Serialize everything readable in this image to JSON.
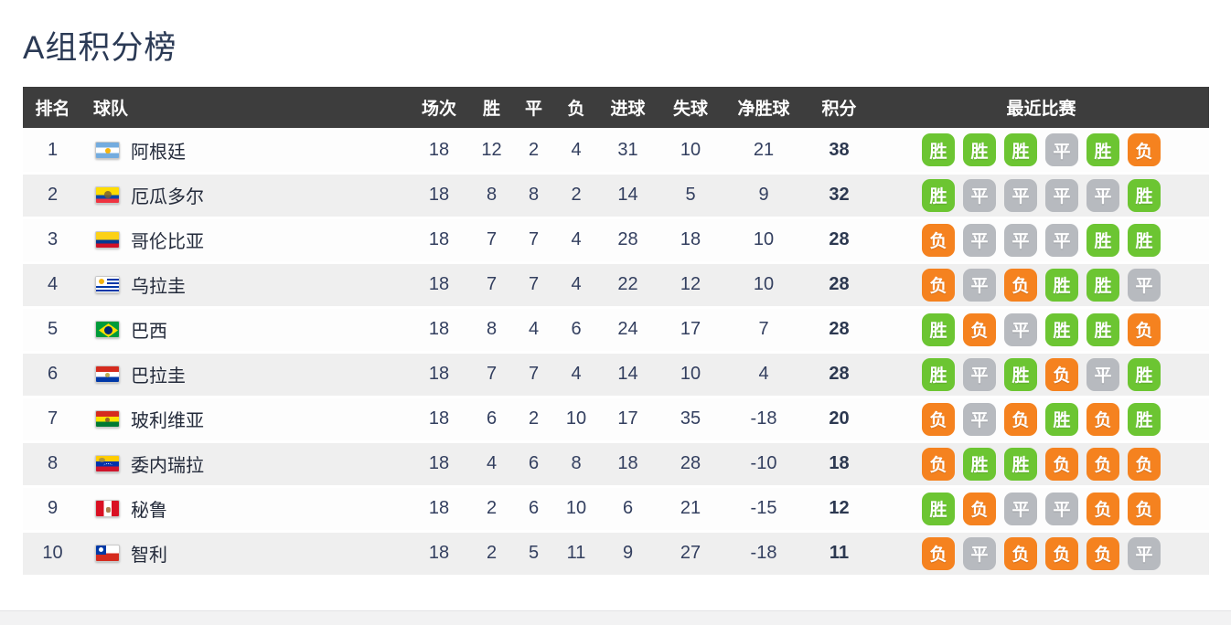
{
  "page": {
    "title": "A组积分榜"
  },
  "table": {
    "columns": {
      "rank": "排名",
      "team": "球队",
      "played": "场次",
      "win": "胜",
      "draw": "平",
      "loss": "负",
      "goals_for": "进球",
      "goals_against": "失球",
      "goal_diff": "净胜球",
      "points": "积分",
      "recent": "最近比赛"
    },
    "result_labels": {
      "win": "胜",
      "draw": "平",
      "loss": "负"
    },
    "colors": {
      "header_bg": "#3d3d3d",
      "row_alt_bg": "#efefef",
      "title_text": "#2b3a55",
      "cell_text": "#333f5f",
      "win_badge": "#6cc532",
      "draw_badge": "#b7babf",
      "loss_badge": "#f5821f"
    },
    "rows": [
      {
        "rank": "1",
        "team": "阿根廷",
        "flag": "argentina",
        "played": "18",
        "win": "12",
        "draw": "2",
        "loss": "4",
        "goals_for": "31",
        "goals_against": "10",
        "goal_diff": "21",
        "points": "38",
        "recent": [
          "win",
          "win",
          "win",
          "draw",
          "win",
          "loss"
        ]
      },
      {
        "rank": "2",
        "team": "厄瓜多尔",
        "flag": "ecuador",
        "played": "18",
        "win": "8",
        "draw": "8",
        "loss": "2",
        "goals_for": "14",
        "goals_against": "5",
        "goal_diff": "9",
        "points": "32",
        "recent": [
          "win",
          "draw",
          "draw",
          "draw",
          "draw",
          "win"
        ]
      },
      {
        "rank": "3",
        "team": "哥伦比亚",
        "flag": "colombia",
        "played": "18",
        "win": "7",
        "draw": "7",
        "loss": "4",
        "goals_for": "28",
        "goals_against": "18",
        "goal_diff": "10",
        "points": "28",
        "recent": [
          "loss",
          "draw",
          "draw",
          "draw",
          "win",
          "win"
        ]
      },
      {
        "rank": "4",
        "team": "乌拉圭",
        "flag": "uruguay",
        "played": "18",
        "win": "7",
        "draw": "7",
        "loss": "4",
        "goals_for": "22",
        "goals_against": "12",
        "goal_diff": "10",
        "points": "28",
        "recent": [
          "loss",
          "draw",
          "loss",
          "win",
          "win",
          "draw"
        ]
      },
      {
        "rank": "5",
        "team": "巴西",
        "flag": "brazil",
        "played": "18",
        "win": "8",
        "draw": "4",
        "loss": "6",
        "goals_for": "24",
        "goals_against": "17",
        "goal_diff": "7",
        "points": "28",
        "recent": [
          "win",
          "loss",
          "draw",
          "win",
          "win",
          "loss"
        ]
      },
      {
        "rank": "6",
        "team": "巴拉圭",
        "flag": "paraguay",
        "played": "18",
        "win": "7",
        "draw": "7",
        "loss": "4",
        "goals_for": "14",
        "goals_against": "10",
        "goal_diff": "4",
        "points": "28",
        "recent": [
          "win",
          "draw",
          "win",
          "loss",
          "draw",
          "win"
        ]
      },
      {
        "rank": "7",
        "team": "玻利维亚",
        "flag": "bolivia",
        "played": "18",
        "win": "6",
        "draw": "2",
        "loss": "10",
        "goals_for": "17",
        "goals_against": "35",
        "goal_diff": "-18",
        "points": "20",
        "recent": [
          "loss",
          "draw",
          "loss",
          "win",
          "loss",
          "win"
        ]
      },
      {
        "rank": "8",
        "team": "委内瑞拉",
        "flag": "venezuela",
        "played": "18",
        "win": "4",
        "draw": "6",
        "loss": "8",
        "goals_for": "18",
        "goals_against": "28",
        "goal_diff": "-10",
        "points": "18",
        "recent": [
          "loss",
          "win",
          "win",
          "loss",
          "loss",
          "loss"
        ]
      },
      {
        "rank": "9",
        "team": "秘鲁",
        "flag": "peru",
        "played": "18",
        "win": "2",
        "draw": "6",
        "loss": "10",
        "goals_for": "6",
        "goals_against": "21",
        "goal_diff": "-15",
        "points": "12",
        "recent": [
          "win",
          "loss",
          "draw",
          "draw",
          "loss",
          "loss"
        ]
      },
      {
        "rank": "10",
        "team": "智利",
        "flag": "chile",
        "played": "18",
        "win": "2",
        "draw": "5",
        "loss": "11",
        "goals_for": "9",
        "goals_against": "27",
        "goal_diff": "-18",
        "points": "11",
        "recent": [
          "loss",
          "draw",
          "loss",
          "loss",
          "loss",
          "draw"
        ]
      }
    ]
  }
}
